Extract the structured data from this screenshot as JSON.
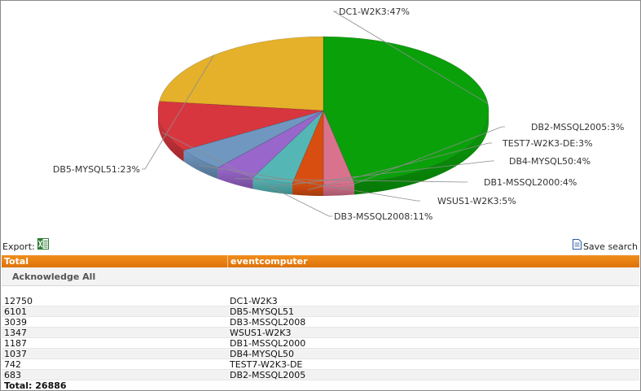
{
  "chart_data": {
    "type": "pie",
    "slices": [
      {
        "label": "DC1-W2K3:47%",
        "value": 47,
        "color": "#0aa00a"
      },
      {
        "label": "DB2-MSSQL2005:3%",
        "value": 3,
        "color": "#d9728d"
      },
      {
        "label": "TEST7-W2K3-DE:3%",
        "value": 3,
        "color": "#d84e10"
      },
      {
        "label": "DB4-MYSQL50:4%",
        "value": 4,
        "color": "#55b6b6"
      },
      {
        "label": "DB1-MSSQL2000:4%",
        "value": 4,
        "color": "#9966cc"
      },
      {
        "label": "WSUS1-W2K3:5%",
        "value": 5,
        "color": "#6f97c0"
      },
      {
        "label": "DB3-MSSQL2008:11%",
        "value": 11,
        "color": "#d8363e"
      },
      {
        "label": "DB5-MYSQL51:23%",
        "value": 23,
        "color": "#e5b12a"
      }
    ]
  },
  "toolbar": {
    "export_label": "Export:",
    "excel_icon": "excel-icon",
    "save_label": "Save search",
    "save_icon": "document-icon"
  },
  "grid": {
    "columns": [
      "Total",
      "eventcomputer"
    ],
    "acknowledge_label": "Acknowledge All",
    "rows": [
      {
        "total": "12750",
        "computer": "DC1-W2K3"
      },
      {
        "total": "6101",
        "computer": "DB5-MYSQL51"
      },
      {
        "total": "3039",
        "computer": "DB3-MSSQL2008"
      },
      {
        "total": "1347",
        "computer": "WSUS1-W2K3"
      },
      {
        "total": "1187",
        "computer": "DB1-MSSQL2000"
      },
      {
        "total": "1037",
        "computer": "DB4-MYSQL50"
      },
      {
        "total": "742",
        "computer": "TEST7-W2K3-DE"
      },
      {
        "total": "683",
        "computer": "DB2-MSSQL2005"
      }
    ],
    "total_label": "Total: 26886"
  }
}
